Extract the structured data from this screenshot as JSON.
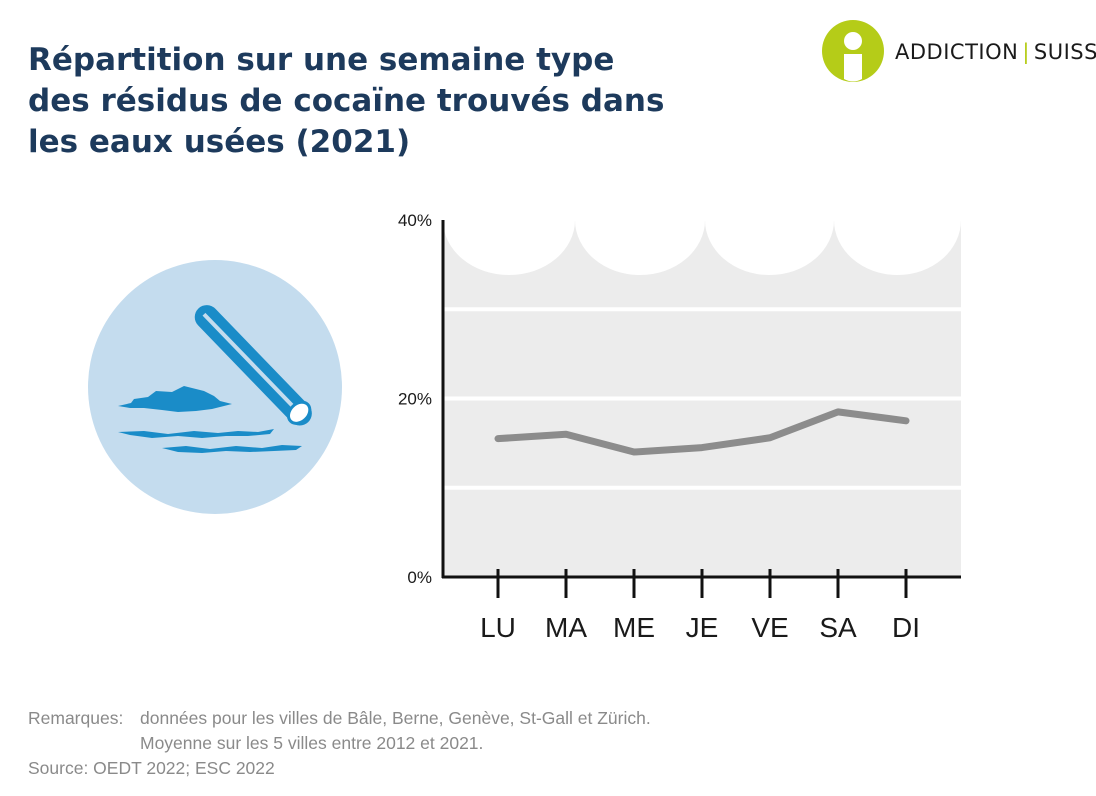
{
  "header": {
    "title_lines": [
      "Répartition sur une semaine type",
      "des résidus de cocaïne trouvés dans",
      "les eaux usées (2021)"
    ]
  },
  "logo": {
    "word1": "ADDICTION",
    "separator": "|",
    "word2": "SUISSE",
    "icon": "person-icon",
    "color": "#b5cc18"
  },
  "illustration": {
    "icon": "cocaine-straw-icon",
    "bg_color": "#c4dcee",
    "fg_color": "#1a8cc8"
  },
  "chart_data": {
    "type": "line",
    "categories": [
      "LU",
      "MA",
      "ME",
      "JE",
      "VE",
      "SA",
      "DI"
    ],
    "series": [
      {
        "values": [
          15.5,
          16.0,
          14.0,
          14.5,
          15.6,
          18.5,
          17.5
        ]
      }
    ],
    "y_ticks": [
      "0%",
      "20%",
      "40%"
    ],
    "ylim": [
      0,
      40
    ],
    "grid_values": [
      10,
      20,
      30
    ],
    "grid": true,
    "line_color": "#8c8c8c",
    "plot_bg": "#ececec"
  },
  "footer": {
    "remarks_label": "Remarques:",
    "remarks_line1": "données pour les villes de Bâle, Berne, Genève, St-Gall et Zürich.",
    "remarks_line2": "Moyenne sur les 5 villes entre 2012 et 2021.",
    "source": "Source: OEDT 2022; ESC 2022"
  }
}
